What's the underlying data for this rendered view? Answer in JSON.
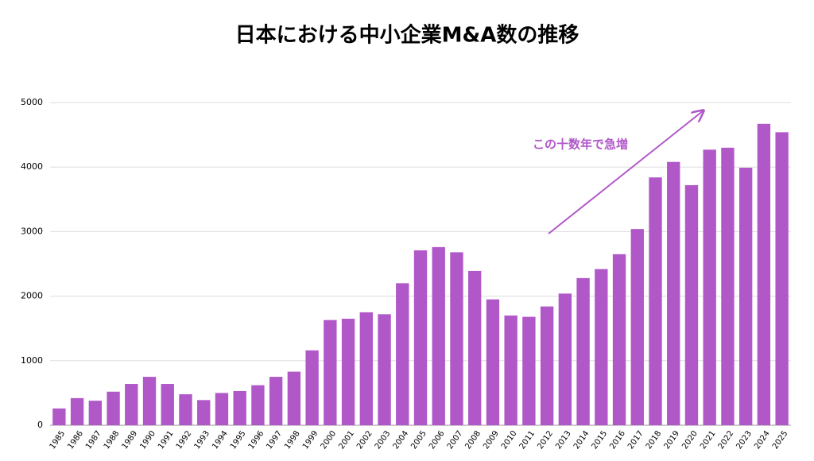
{
  "chart_data": {
    "type": "bar",
    "title": "日本における中小企業M&A数の推移",
    "categories": [
      "1985",
      "1986",
      "1987",
      "1988",
      "1989",
      "1990",
      "1991",
      "1992",
      "1993",
      "1994",
      "1995",
      "1996",
      "1997",
      "1998",
      "1999",
      "2000",
      "2001",
      "2002",
      "2003",
      "2004",
      "2005",
      "2006",
      "2007",
      "2008",
      "2009",
      "2010",
      "2011",
      "2012",
      "2013",
      "2014",
      "2015",
      "2016",
      "2017",
      "2018",
      "2019",
      "2020",
      "2021",
      "2022",
      "2023",
      "2024",
      "2025"
    ],
    "values": [
      260,
      420,
      380,
      520,
      640,
      750,
      640,
      480,
      390,
      500,
      530,
      620,
      750,
      830,
      1160,
      1630,
      1650,
      1750,
      1720,
      2200,
      2710,
      2760,
      2680,
      2390,
      1950,
      1700,
      1680,
      1840,
      2040,
      2280,
      2420,
      2650,
      3040,
      3840,
      4080,
      3720,
      4270,
      4300,
      3990,
      4670,
      4540
    ],
    "color": "#b158c9",
    "ylim": [
      0,
      5000
    ],
    "yticks": [
      0,
      1000,
      2000,
      3000,
      4000,
      5000
    ],
    "grid": true,
    "annotation": "この十数年で急増"
  }
}
